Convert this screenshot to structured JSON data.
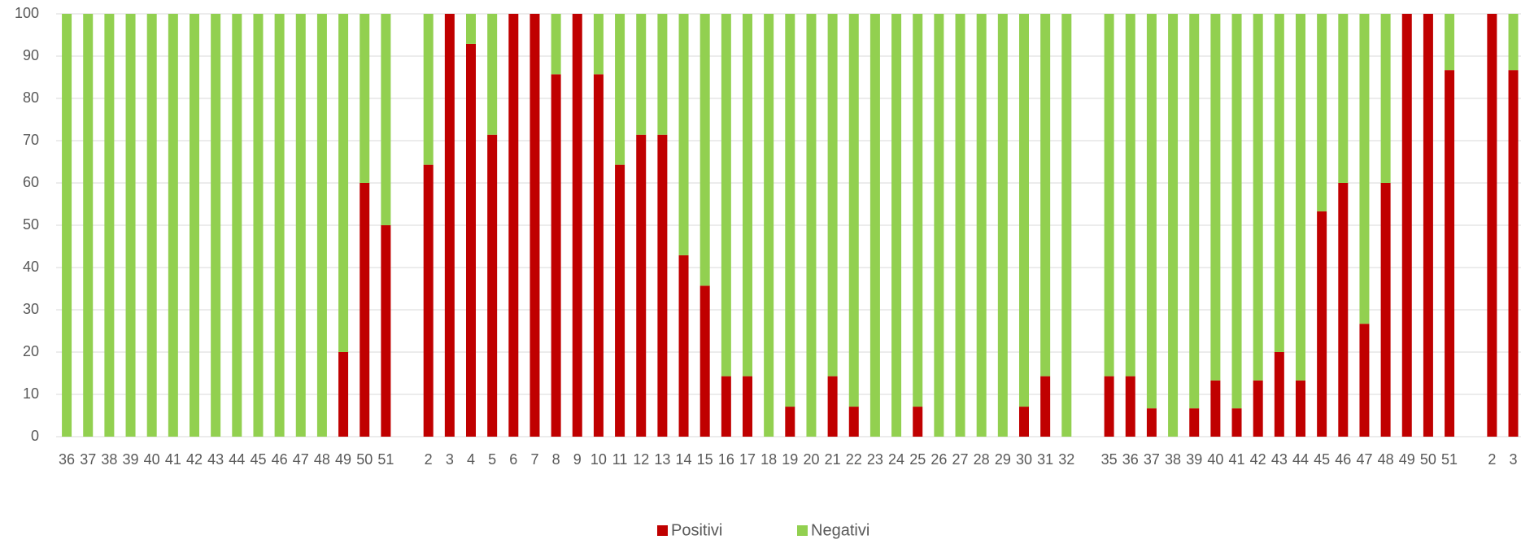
{
  "chart_data": {
    "type": "stacked-bar",
    "categories": [
      "36",
      "37",
      "38",
      "39",
      "40",
      "41",
      "42",
      "43",
      "44",
      "45",
      "46",
      "47",
      "48",
      "49",
      "50",
      "51",
      null,
      "2",
      "3",
      "4",
      "5",
      "6",
      "7",
      "8",
      "9",
      "10",
      "11",
      "12",
      "13",
      "14",
      "15",
      "16",
      "17",
      "18",
      "19",
      "20",
      "21",
      "22",
      "23",
      "24",
      "25",
      "26",
      "27",
      "28",
      "29",
      "30",
      "31",
      "32",
      null,
      "35",
      "36",
      "37",
      "38",
      "39",
      "40",
      "41",
      "42",
      "43",
      "44",
      "45",
      "46",
      "47",
      "48",
      "49",
      "50",
      "51",
      null,
      "2",
      "3"
    ],
    "series": [
      {
        "name": "Positivi",
        "color": "#c00000",
        "values": [
          0,
          0,
          0,
          0,
          0,
          0,
          0,
          0,
          0,
          0,
          0,
          0,
          0,
          20,
          60,
          50,
          null,
          64.3,
          100,
          92.9,
          71.4,
          100,
          100,
          85.7,
          100,
          85.7,
          64.3,
          71.4,
          71.4,
          42.9,
          35.7,
          14.3,
          14.3,
          0,
          7.1,
          0,
          14.3,
          7.1,
          0,
          0,
          7.1,
          0,
          0,
          0,
          0,
          7.1,
          14.3,
          0,
          null,
          14.3,
          14.3,
          6.7,
          0,
          6.7,
          13.3,
          6.7,
          13.3,
          20,
          13.3,
          53.3,
          60,
          26.7,
          60,
          100,
          100,
          86.7,
          null,
          100,
          86.7
        ]
      },
      {
        "name": "Negativi",
        "color": "#92d050",
        "values": [
          100,
          100,
          100,
          100,
          100,
          100,
          100,
          100,
          100,
          100,
          100,
          100,
          100,
          80,
          40,
          50,
          null,
          35.7,
          0,
          7.1,
          28.6,
          0,
          0,
          14.3,
          0,
          14.3,
          35.7,
          28.6,
          28.6,
          57.1,
          64.3,
          85.7,
          85.7,
          100,
          92.9,
          100,
          85.7,
          92.9,
          100,
          100,
          92.9,
          100,
          100,
          100,
          100,
          92.9,
          85.7,
          100,
          null,
          85.7,
          85.7,
          93.3,
          100,
          93.3,
          86.7,
          93.3,
          86.7,
          80,
          86.7,
          46.7,
          40,
          73.3,
          40,
          0,
          0,
          13.3,
          null,
          0,
          13.3
        ]
      }
    ],
    "ylim": [
      0,
      100
    ],
    "yticks": [
      0,
      10,
      20,
      30,
      40,
      50,
      60,
      70,
      80,
      90,
      100
    ],
    "grid": true,
    "legend": "bottom"
  }
}
